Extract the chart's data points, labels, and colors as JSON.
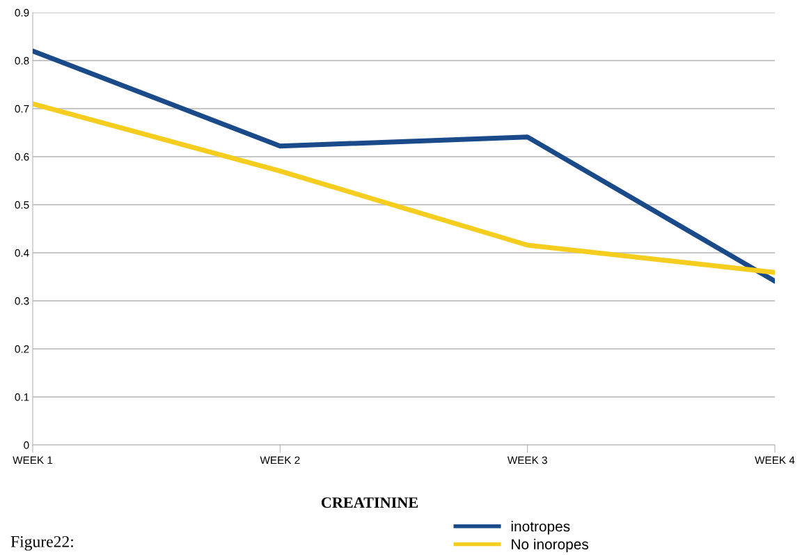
{
  "chart_data": {
    "type": "line",
    "xlabel": "CREATININE",
    "categories": [
      "WEEK 1",
      "WEEK 2",
      "WEEK 3",
      "WEEK 4"
    ],
    "series": [
      {
        "name": "inotropes",
        "color": "#1a4a8a",
        "values": [
          0.82,
          0.622,
          0.641,
          0.341
        ]
      },
      {
        "name": "No inoropes",
        "color": "#f5cd1f",
        "values": [
          0.71,
          0.57,
          0.416,
          0.359
        ]
      }
    ],
    "ylim": [
      0,
      0.9
    ],
    "yticks": [
      0,
      0.1,
      0.2,
      0.3,
      0.4,
      0.5,
      0.6,
      0.7,
      0.8,
      0.9
    ],
    "grid": "y",
    "legend": "bottom",
    "marker": "none",
    "line_style": "solid",
    "annotations": [
      "Figure22:"
    ]
  }
}
